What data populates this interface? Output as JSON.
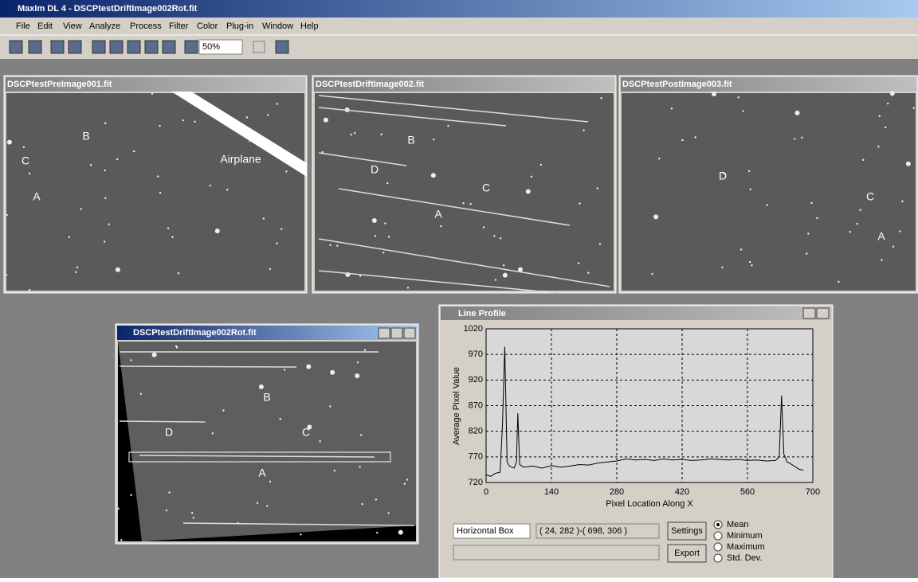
{
  "app": {
    "title": "MaxIm DL 4 - DSCPtestDriftImage002Rot.fit",
    "menu": [
      "File",
      "Edit",
      "View",
      "Analyze",
      "Process",
      "Filter",
      "Color",
      "Plug-in",
      "Window",
      "Help"
    ],
    "zoom": "50%"
  },
  "windows": [
    {
      "title": "DSCPtestPreImage001.fit",
      "labels": [
        "B",
        "C",
        "A",
        "Airplane"
      ]
    },
    {
      "title": "DSCPtestDriftImage002.fit",
      "labels": [
        "B",
        "D",
        "C",
        "A"
      ]
    },
    {
      "title": "DSCPtestPostImage003.fit",
      "labels": [
        "D",
        "C",
        "A"
      ]
    },
    {
      "title": "DSCPtestDriftImage002Rot.fit",
      "labels": [
        "B",
        "D",
        "C",
        "A"
      ]
    }
  ],
  "profile_window": {
    "title": "Line Profile",
    "mode": "Horizontal Box",
    "range": "( 24, 282 )-( 698, 306 )",
    "buttons": [
      "Settings",
      "Export"
    ],
    "options": [
      "Mean",
      "Minimum",
      "Maximum",
      "Std. Dev."
    ]
  },
  "chart_data": {
    "type": "line",
    "xlabel": "Pixel Location Along X",
    "ylabel": "Average Pixel Value",
    "color": "#000000",
    "grid": true,
    "x": [
      0,
      10,
      20,
      30,
      35,
      40,
      45,
      50,
      60,
      65,
      68,
      72,
      80,
      100,
      120,
      140,
      160,
      180,
      200,
      220,
      240,
      260,
      280,
      300,
      320,
      340,
      360,
      380,
      400,
      420,
      440,
      460,
      480,
      500,
      520,
      540,
      560,
      580,
      600,
      620,
      628,
      633,
      638,
      645,
      650,
      660,
      670,
      680
    ],
    "values": [
      735,
      732,
      738,
      740,
      830,
      985,
      760,
      752,
      748,
      760,
      855,
      755,
      750,
      752,
      748,
      753,
      750,
      752,
      755,
      754,
      758,
      760,
      762,
      766,
      764,
      765,
      763,
      766,
      764,
      765,
      763,
      764,
      766,
      765,
      764,
      765,
      763,
      764,
      762,
      763,
      770,
      890,
      775,
      760,
      758,
      752,
      746,
      744
    ],
    "xlim": [
      0,
      700
    ],
    "ylim": [
      720,
      1020
    ],
    "xticks": [
      0,
      140,
      280,
      420,
      560,
      700
    ],
    "yticks": [
      720,
      770,
      820,
      870,
      920,
      970,
      1020
    ]
  }
}
